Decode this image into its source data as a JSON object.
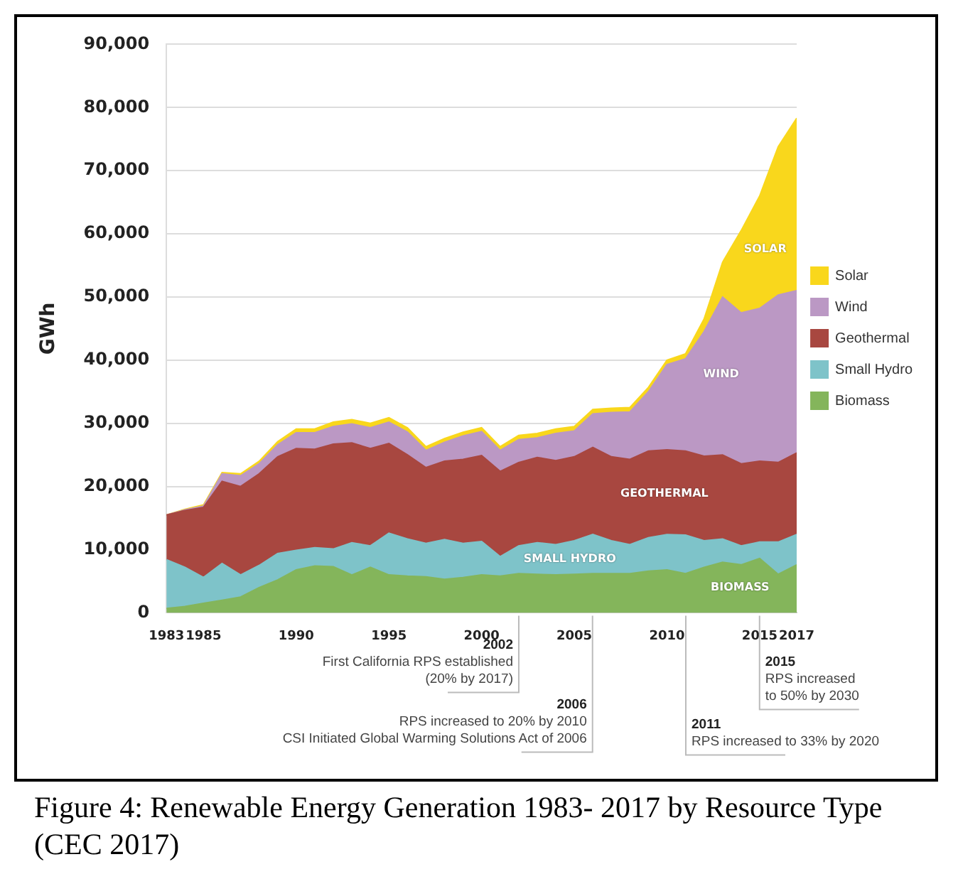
{
  "chart_data": {
    "type": "area",
    "stacked": true,
    "title": "Figure 4: Renewable Energy Generation 1983- 2017 by Resource Type (CEC 2017)",
    "ylabel": "GWh",
    "x": [
      1983,
      1984,
      1985,
      1986,
      1987,
      1988,
      1989,
      1990,
      1991,
      1992,
      1993,
      1994,
      1995,
      1996,
      1997,
      1998,
      1999,
      2000,
      2001,
      2002,
      2003,
      2004,
      2005,
      2006,
      2007,
      2008,
      2009,
      2010,
      2011,
      2012,
      2013,
      2014,
      2015,
      2016,
      2017
    ],
    "series": [
      {
        "name": "Biomass",
        "color": "#84b55b",
        "values": [
          700,
          1000,
          1500,
          2000,
          2500,
          4000,
          5200,
          6800,
          7400,
          7300,
          6000,
          7200,
          6000,
          5800,
          5700,
          5300,
          5600,
          6000,
          5800,
          6200,
          6100,
          6000,
          6100,
          6200,
          6200,
          6200,
          6600,
          6800,
          6200,
          7200,
          8000,
          7600,
          8600,
          6100,
          7600
        ]
      },
      {
        "name": "Small Hydro",
        "color": "#7ec3c9",
        "values": [
          7700,
          6200,
          4100,
          5800,
          3500,
          3500,
          4200,
          3100,
          2900,
          2800,
          5100,
          3400,
          6600,
          5900,
          5300,
          6300,
          5400,
          5300,
          3100,
          4400,
          5000,
          4800,
          5300,
          6200,
          5200,
          4600,
          5300,
          5600,
          6100,
          4200,
          3700,
          3000,
          2600,
          5100,
          4800
        ]
      },
      {
        "name": "Geothermal",
        "color": "#a84740",
        "values": [
          7100,
          9000,
          11100,
          13000,
          14000,
          14500,
          15300,
          16100,
          15600,
          16600,
          15800,
          15400,
          14200,
          13300,
          12000,
          12400,
          13300,
          13600,
          13500,
          13200,
          13500,
          13300,
          13300,
          13800,
          13300,
          13500,
          13700,
          13400,
          13300,
          13400,
          13300,
          13000,
          12800,
          12600,
          12900
        ]
      },
      {
        "name": "Wind",
        "color": "#bb98c4",
        "values": [
          0,
          100,
          200,
          1200,
          1700,
          1600,
          1900,
          2500,
          2600,
          2800,
          3000,
          3300,
          3400,
          3600,
          2700,
          3000,
          3700,
          3800,
          3300,
          3600,
          3100,
          4300,
          4100,
          5300,
          7000,
          7500,
          9400,
          13500,
          14600,
          19700,
          25000,
          23900,
          24200,
          26500,
          25700
        ]
      },
      {
        "name": "Solar",
        "color": "#f9d71c",
        "values": [
          0,
          100,
          200,
          200,
          300,
          400,
          500,
          600,
          600,
          700,
          700,
          700,
          700,
          700,
          600,
          600,
          600,
          600,
          600,
          700,
          700,
          700,
          700,
          700,
          700,
          700,
          700,
          700,
          800,
          2000,
          5500,
          13000,
          17800,
          23500,
          27300
        ]
      }
    ],
    "xlim": [
      1983,
      2017
    ],
    "xticks": [
      1983,
      1985,
      1990,
      1995,
      2000,
      2005,
      2010,
      2015,
      2017
    ],
    "ylim": [
      0,
      90000
    ],
    "yticks": [
      {
        "value": 0,
        "label": "0"
      },
      {
        "value": 10000,
        "label": "10,000"
      },
      {
        "value": 20000,
        "label": "20,000"
      },
      {
        "value": 30000,
        "label": "30,000"
      },
      {
        "value": 40000,
        "label": "40,000"
      },
      {
        "value": 50000,
        "label": "50,000"
      },
      {
        "value": 60000,
        "label": "60,000"
      },
      {
        "value": 70000,
        "label": "70,000"
      },
      {
        "value": 80000,
        "label": "80,000"
      },
      {
        "value": 90000,
        "label": "90,000"
      }
    ],
    "grid": "y",
    "legend": "right",
    "annotations": [
      "SOLAR",
      "WIND",
      "GEOTHERMAL",
      "SMALL HYDRO",
      "BIOMASS",
      "2002\nFirst California RPS established\n(20% by 2017)",
      "2006\nRPS increased to 20% by 2010\nCSI Initiated Global Warming Solutions Act of 2006",
      "2015\nRPS increased\nto 50% by 2030",
      "2011\nRPS increased to 33% by 2020"
    ]
  }
}
